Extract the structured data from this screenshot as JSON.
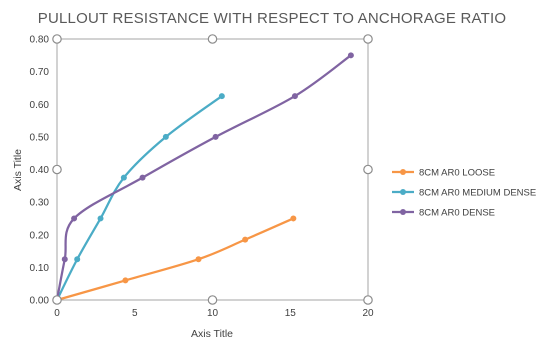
{
  "chart_data": {
    "type": "scatter",
    "title": "PULLOUT RESISTANCE WITH RESPECT TO ANCHORAGE RATIO",
    "xlabel": "Axis Title",
    "ylabel": "Axis Title",
    "xlim": [
      0,
      20
    ],
    "ylim": [
      0,
      0.8
    ],
    "x_ticks": [
      "0",
      "5",
      "10",
      "15",
      "20"
    ],
    "y_ticks": [
      "0.00",
      "0.10",
      "0.20",
      "0.30",
      "0.40",
      "0.50",
      "0.60",
      "0.70",
      "0.80"
    ],
    "grid": false,
    "legend_position": "right",
    "series": [
      {
        "name": "8CM AR0 LOOSE",
        "color": "#F79646",
        "points": [
          [
            0,
            0
          ],
          [
            4.4,
            0.06
          ],
          [
            9.1,
            0.125
          ],
          [
            12.1,
            0.185
          ],
          [
            15.2,
            0.25
          ]
        ]
      },
      {
        "name": "8CM AR0 MEDIUM DENSE",
        "color": "#4BACC6",
        "points": [
          [
            0,
            0
          ],
          [
            1.3,
            0.125
          ],
          [
            2.8,
            0.25
          ],
          [
            4.3,
            0.375
          ],
          [
            7.0,
            0.5
          ],
          [
            10.6,
            0.625
          ]
        ]
      },
      {
        "name": "8CM AR0 DENSE",
        "color": "#8064A2",
        "points": [
          [
            0,
            0
          ],
          [
            0.5,
            0.125
          ],
          [
            1.1,
            0.25
          ],
          [
            5.5,
            0.375
          ],
          [
            10.2,
            0.5
          ],
          [
            15.3,
            0.625
          ],
          [
            18.9,
            0.75
          ]
        ]
      }
    ]
  }
}
